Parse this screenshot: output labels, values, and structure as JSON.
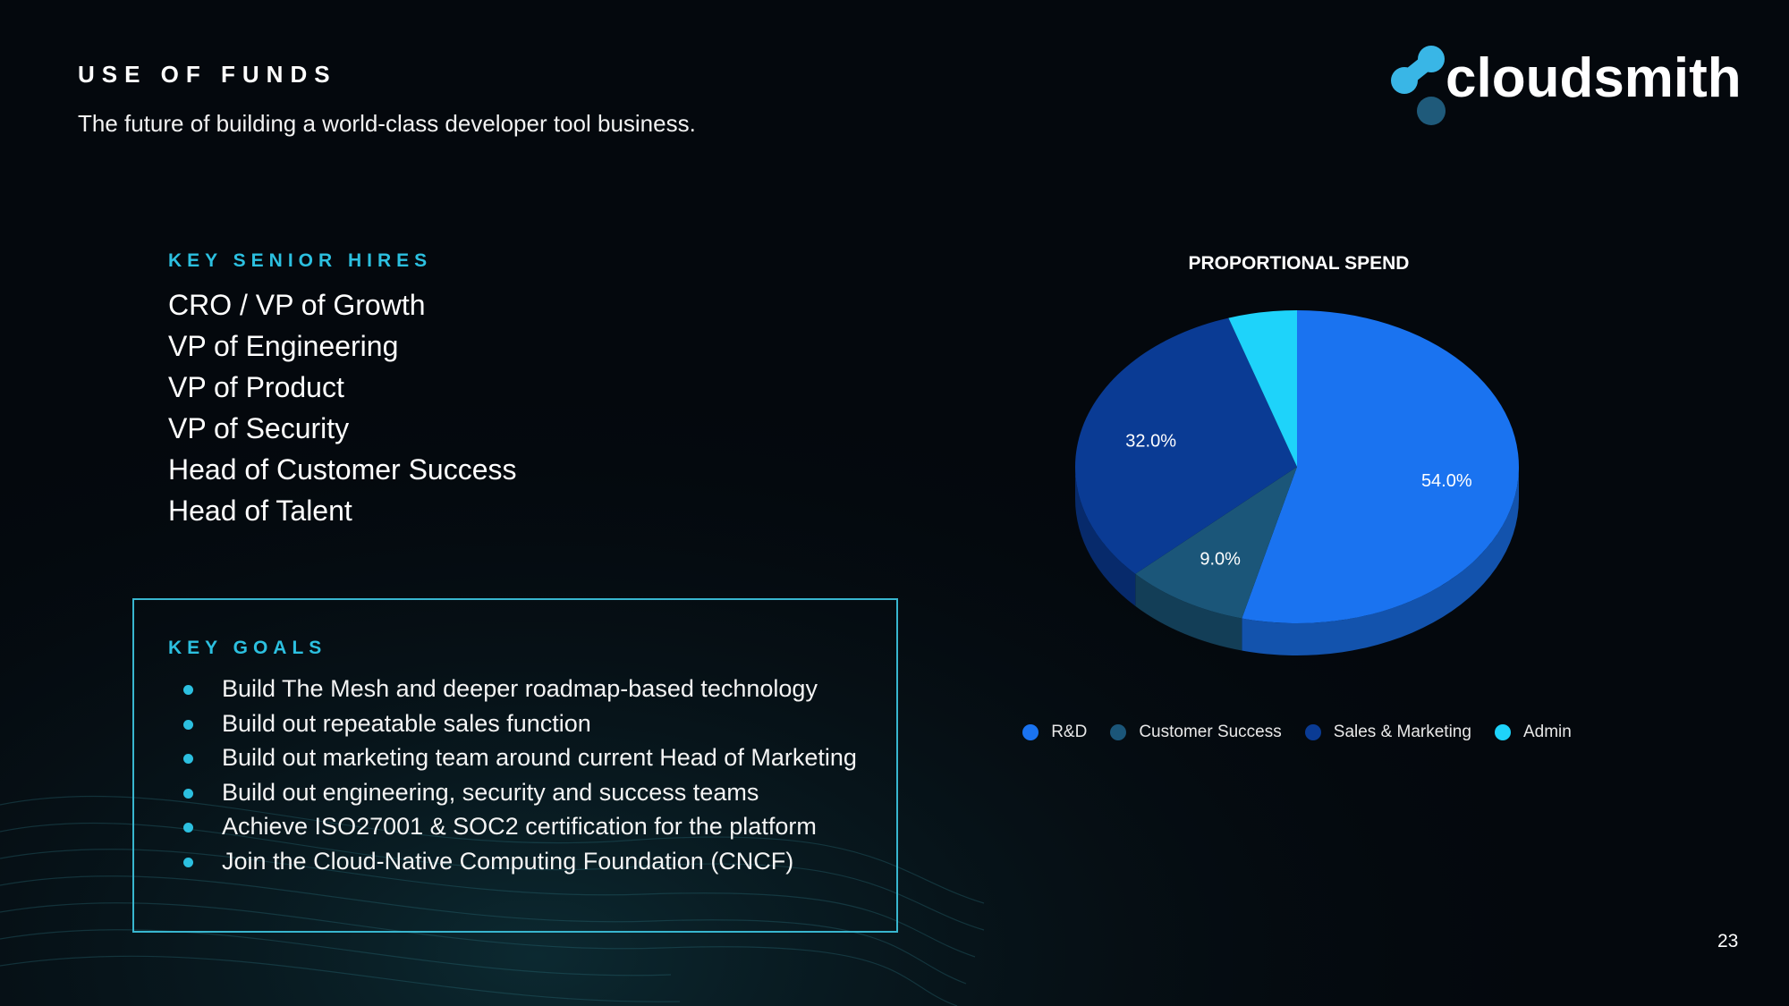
{
  "header": {
    "title": "USE OF FUNDS",
    "subtitle": "The future of building a world-class developer tool business."
  },
  "logo": {
    "text": "cloudsmith"
  },
  "hires": {
    "title": "KEY SENIOR HIRES",
    "items": [
      "CRO / VP of Growth",
      "VP of Engineering",
      "VP of Product",
      "VP of Security",
      "Head of Customer Success",
      "Head of Talent"
    ]
  },
  "goals": {
    "title": "KEY GOALS",
    "items": [
      "Build The Mesh and deeper roadmap-based technology",
      "Build out repeatable sales function",
      "Build out marketing team around current Head of Marketing",
      "Build out engineering, security and success teams",
      "Achieve ISO27001 & SOC2 certification for the platform",
      "Join the Cloud-Native Computing Foundation (CNCF)"
    ]
  },
  "chart_data": {
    "type": "pie",
    "title": "PROPORTIONAL SPEND",
    "categories": [
      "R&D",
      "Customer Success",
      "Sales & Marketing",
      "Admin"
    ],
    "values": [
      54,
      9,
      32,
      5
    ],
    "data_labels": [
      "54.0%",
      "9.0%",
      "32.0%",
      ""
    ],
    "colors": [
      "#1a73f0",
      "#1b5679",
      "#0a3b94",
      "#1ed3fa"
    ],
    "legend": "bottom"
  },
  "page_number": "23"
}
